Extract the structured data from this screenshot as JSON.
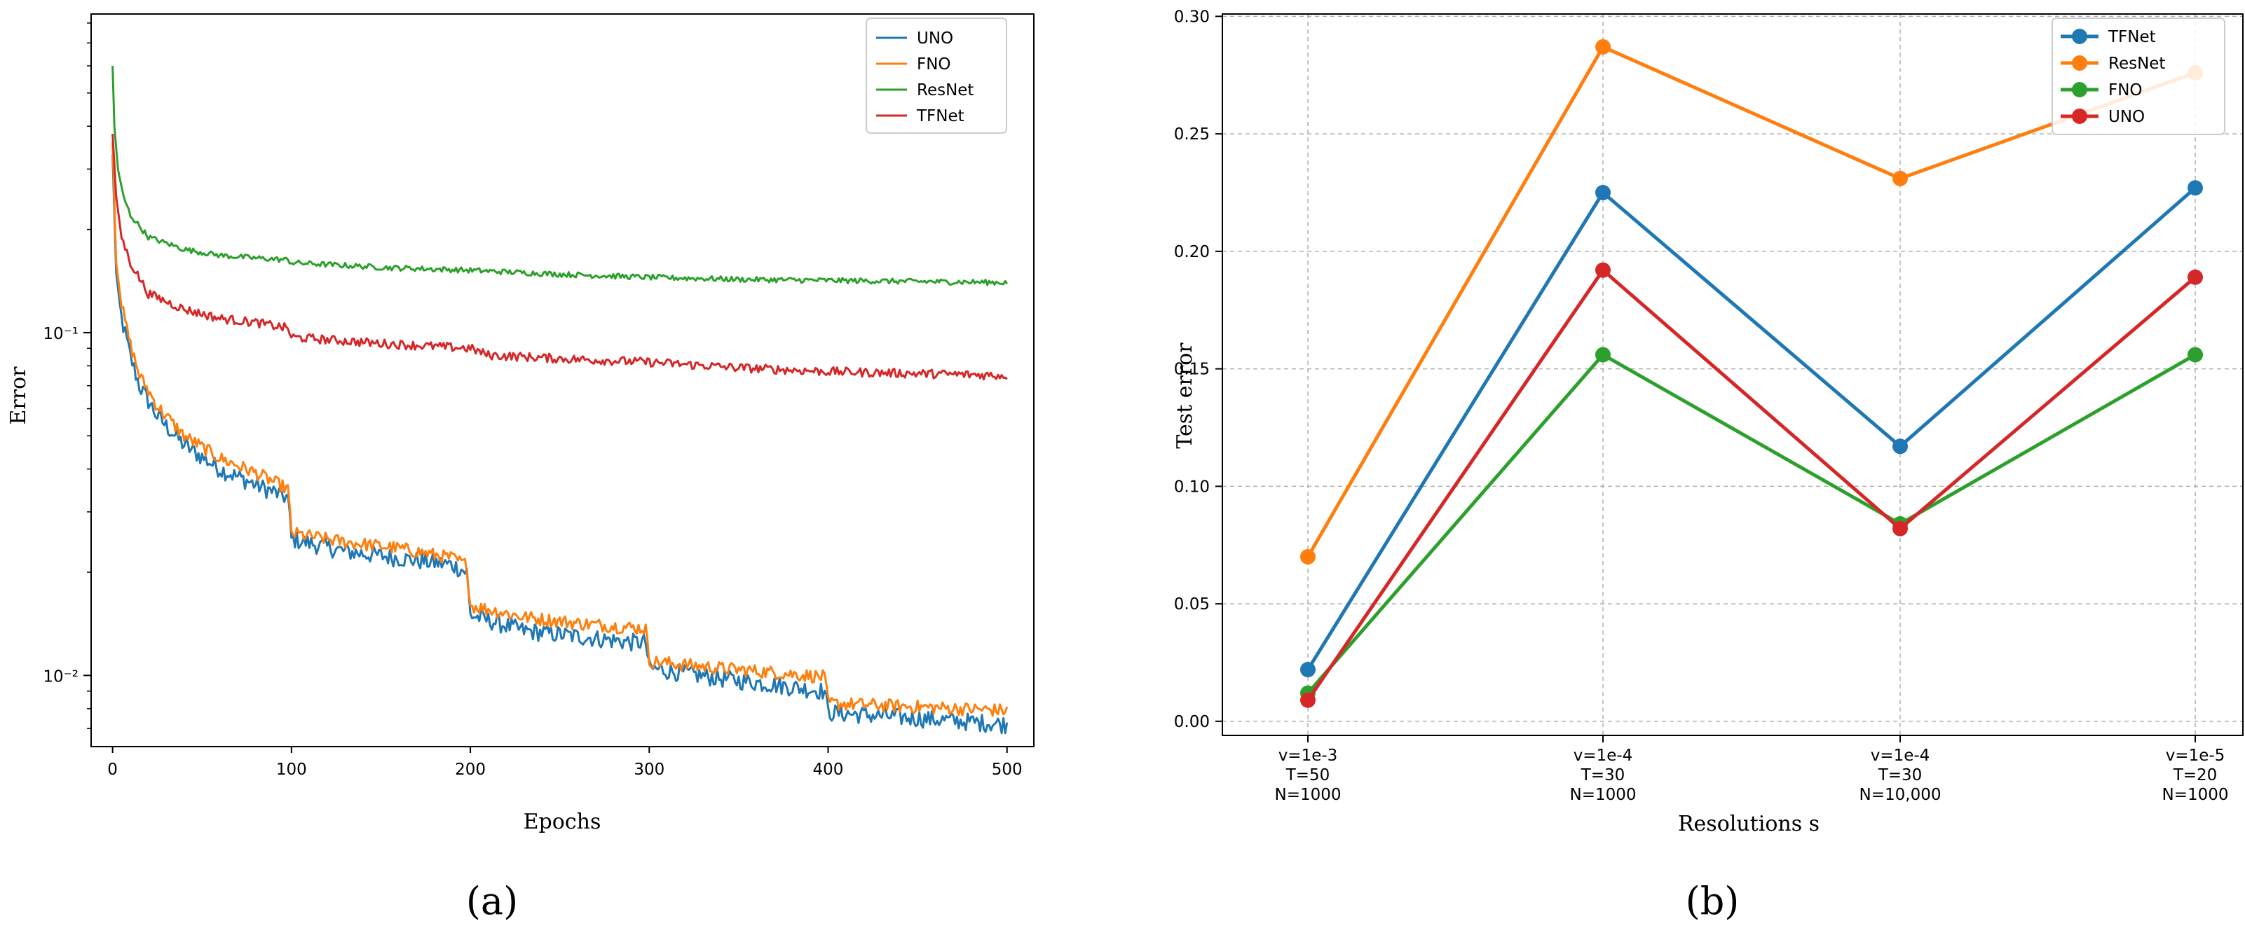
{
  "chart_data": [
    {
      "panel": "(a)",
      "type": "line",
      "title": "",
      "xlabel": "Epochs",
      "ylabel": "Error",
      "yscale": "log",
      "xlim": [
        -12,
        515
      ],
      "ylim": [
        0.0062,
        0.85
      ],
      "xticks": [
        "0",
        "100",
        "200",
        "300",
        "400",
        "500"
      ],
      "xtick_values": [
        0,
        100,
        200,
        300,
        400,
        500
      ],
      "yticks": [
        "10⁻²",
        "10⁻¹"
      ],
      "ytick_values": [
        0.01,
        0.1
      ],
      "legend_position": "top-right",
      "colors": {
        "UNO": "#1f77b4",
        "FNO": "#ff7f0e",
        "ResNet": "#2ca02c",
        "TFNet": "#d62728"
      },
      "series": [
        {
          "name": "UNO",
          "points": [
            [
              0,
              0.33
            ],
            [
              2,
              0.15
            ],
            [
              5,
              0.11
            ],
            [
              10,
              0.085
            ],
            [
              15,
              0.07
            ],
            [
              25,
              0.057
            ],
            [
              40,
              0.047
            ],
            [
              60,
              0.04
            ],
            [
              80,
              0.036
            ],
            [
              98,
              0.033
            ],
            [
              100,
              0.025
            ],
            [
              130,
              0.023
            ],
            [
              160,
              0.022
            ],
            [
              190,
              0.021
            ],
            [
              198,
              0.02
            ],
            [
              200,
              0.015
            ],
            [
              230,
              0.0135
            ],
            [
              260,
              0.013
            ],
            [
              290,
              0.0125
            ],
            [
              298,
              0.0125
            ],
            [
              300,
              0.0105
            ],
            [
              340,
              0.0098
            ],
            [
              370,
              0.0094
            ],
            [
              398,
              0.009
            ],
            [
              400,
              0.0078
            ],
            [
              450,
              0.0075
            ],
            [
              500,
              0.0072
            ]
          ]
        },
        {
          "name": "FNO",
          "points": [
            [
              0,
              0.36
            ],
            [
              2,
              0.16
            ],
            [
              5,
              0.12
            ],
            [
              10,
              0.092
            ],
            [
              15,
              0.075
            ],
            [
              25,
              0.061
            ],
            [
              40,
              0.05
            ],
            [
              60,
              0.043
            ],
            [
              80,
              0.039
            ],
            [
              98,
              0.035
            ],
            [
              100,
              0.026
            ],
            [
              130,
              0.0245
            ],
            [
              160,
              0.0235
            ],
            [
              190,
              0.022
            ],
            [
              198,
              0.021
            ],
            [
              200,
              0.016
            ],
            [
              230,
              0.0148
            ],
            [
              260,
              0.0142
            ],
            [
              290,
              0.0138
            ],
            [
              298,
              0.0137
            ],
            [
              300,
              0.011
            ],
            [
              340,
              0.0105
            ],
            [
              370,
              0.0102
            ],
            [
              398,
              0.0099
            ],
            [
              400,
              0.0083
            ],
            [
              450,
              0.0081
            ],
            [
              500,
              0.0079
            ]
          ]
        },
        {
          "name": "ResNet",
          "points": [
            [
              0,
              0.6
            ],
            [
              1,
              0.4
            ],
            [
              3,
              0.3
            ],
            [
              6,
              0.25
            ],
            [
              10,
              0.22
            ],
            [
              20,
              0.19
            ],
            [
              40,
              0.175
            ],
            [
              60,
              0.168
            ],
            [
              80,
              0.165
            ],
            [
              98,
              0.163
            ],
            [
              100,
              0.16
            ],
            [
              150,
              0.155
            ],
            [
              200,
              0.152
            ],
            [
              250,
              0.148
            ],
            [
              300,
              0.145
            ],
            [
              350,
              0.143
            ],
            [
              400,
              0.142
            ],
            [
              450,
              0.141
            ],
            [
              500,
              0.14
            ]
          ]
        },
        {
          "name": "TFNet",
          "points": [
            [
              0,
              0.38
            ],
            [
              2,
              0.25
            ],
            [
              5,
              0.19
            ],
            [
              10,
              0.16
            ],
            [
              20,
              0.13
            ],
            [
              40,
              0.117
            ],
            [
              60,
              0.11
            ],
            [
              80,
              0.107
            ],
            [
              98,
              0.103
            ],
            [
              100,
              0.097
            ],
            [
              150,
              0.093
            ],
            [
              200,
              0.09
            ],
            [
              210,
              0.086
            ],
            [
              250,
              0.084
            ],
            [
              300,
              0.082
            ],
            [
              350,
              0.079
            ],
            [
              400,
              0.077
            ],
            [
              450,
              0.076
            ],
            [
              500,
              0.075
            ]
          ]
        }
      ]
    },
    {
      "panel": "(b)",
      "type": "line",
      "title": "",
      "xlabel": "Resolutions s",
      "ylabel": "Test error",
      "ylim": [
        -0.006,
        0.301
      ],
      "yticks": [
        "0.00",
        "0.05",
        "0.10",
        "0.15",
        "0.20",
        "0.25",
        "0.30"
      ],
      "ytick_values": [
        0,
        0.05,
        0.1,
        0.15,
        0.2,
        0.25,
        0.3
      ],
      "grid": true,
      "legend_position": "top-right",
      "categories": [
        [
          "v=1e-3",
          "T=50",
          "N=1000"
        ],
        [
          "v=1e-4",
          "T=30",
          "N=1000"
        ],
        [
          "v=1e-4",
          "T=30",
          "N=10,000"
        ],
        [
          "v=1e-5",
          "T=20",
          "N=1000"
        ]
      ],
      "colors": {
        "TFNet": "#1f77b4",
        "ResNet": "#ff7f0e",
        "FNO": "#2ca02c",
        "UNO": "#d62728"
      },
      "series": [
        {
          "name": "TFNet",
          "values": [
            0.022,
            0.225,
            0.117,
            0.227
          ]
        },
        {
          "name": "ResNet",
          "values": [
            0.07,
            0.287,
            0.231,
            0.276
          ]
        },
        {
          "name": "FNO",
          "values": [
            0.012,
            0.156,
            0.084,
            0.156
          ]
        },
        {
          "name": "UNO",
          "values": [
            0.009,
            0.192,
            0.082,
            0.189
          ]
        }
      ]
    }
  ]
}
